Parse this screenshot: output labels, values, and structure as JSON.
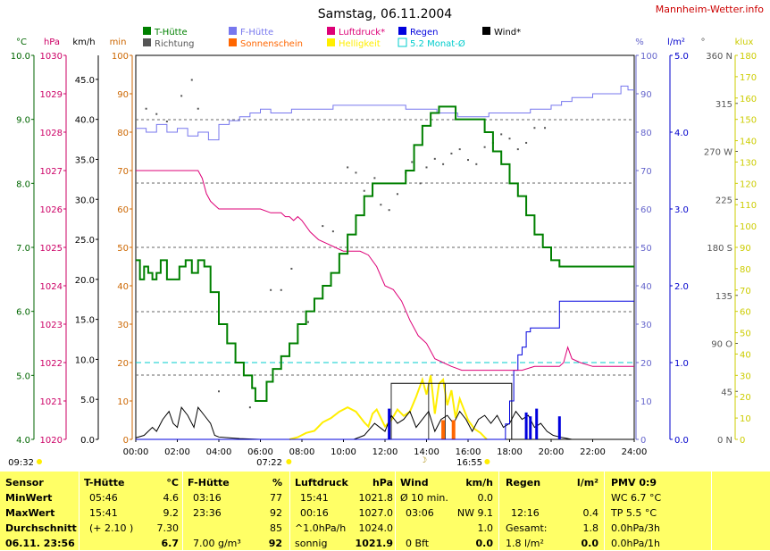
{
  "title": "Samstag, 06.11.2004",
  "site": "Mannheim-Wetter.info",
  "colors": {
    "t_huette": "#008000",
    "f_huette": "#7777ee",
    "luftdruck": "#dd0077",
    "regen": "#0000dd",
    "wind": "#000000",
    "richtung": "#555555",
    "sonnenschein": "#ff6600",
    "helligkeit": "#ffee00",
    "monat": "#00cccc",
    "axis_temp": "#006600",
    "axis_hpa": "#cc0066",
    "axis_min": "#cc6600",
    "axis_pct": "#6666cc",
    "axis_l": "#0000cc",
    "axis_lux": "#cccc00"
  },
  "legend": [
    {
      "label": "T-Hütte",
      "color": "#008000",
      "text_color": "#008000",
      "type": "box"
    },
    {
      "label": "F-Hütte",
      "color": "#7777ee",
      "text_color": "#7777ee",
      "type": "box"
    },
    {
      "label": "Luftdruck*",
      "color": "#dd0077",
      "text_color": "#dd0077",
      "type": "box"
    },
    {
      "label": "Regen",
      "color": "#0000dd",
      "text_color": "#0000dd",
      "type": "box"
    },
    {
      "label": "Wind*",
      "color": "#000000",
      "text_color": "#000000",
      "type": "box"
    },
    {
      "label": "Richtung",
      "color": "#555555",
      "text_color": "#555555",
      "type": "box"
    },
    {
      "label": "Sonnenschein",
      "color": "#ff6600",
      "text_color": "#ff6600",
      "type": "box"
    },
    {
      "label": "Helligkeit",
      "color": "#ffee00",
      "text_color": "#ffee00",
      "type": "box"
    },
    {
      "label": "5.2 Monat-Ø",
      "color": "#00cccc",
      "text_color": "#00cccc",
      "type": "outline"
    }
  ],
  "axis_units": {
    "temp": "°C",
    "hpa": "hPa",
    "kmh": "km/h",
    "min": "min",
    "pct": "%",
    "lm2": "l/m²",
    "deg": "°",
    "klux": "klux"
  },
  "axes": {
    "temp": [
      "4.0",
      "5.0",
      "6.0",
      "7.0",
      "8.0",
      "9.0",
      "10.0"
    ],
    "hpa": [
      "1020",
      "1021",
      "1022",
      "1023",
      "1024",
      "1025",
      "1026",
      "1027",
      "1028",
      "1029",
      "1030"
    ],
    "kmh": [
      "0.0",
      "5.0",
      "10.0",
      "15.0",
      "20.0",
      "25.0",
      "30.0",
      "35.0",
      "40.0",
      "45.0"
    ],
    "min": [
      "0",
      "10",
      "20",
      "30",
      "40",
      "50",
      "60",
      "70",
      "80",
      "90",
      "100"
    ],
    "pct": [
      "0",
      "10",
      "20",
      "30",
      "40",
      "50",
      "60",
      "70",
      "80",
      "90",
      "100"
    ],
    "lm2": [
      "0.0",
      "1.0",
      "2.0",
      "3.0",
      "4.0",
      "5.0"
    ],
    "deg": [
      "0 N",
      "45",
      "90 O",
      "135",
      "180 S",
      "225",
      "270 W",
      "315",
      "360 N"
    ],
    "klux": [
      "0",
      "10",
      "20",
      "30",
      "40",
      "50",
      "60",
      "70",
      "80",
      "90",
      "100",
      "110",
      "120",
      "130",
      "140",
      "150",
      "160",
      "170",
      "180"
    ],
    "hours": [
      "00:00",
      "02:00",
      "04:00",
      "06:00",
      "08:00",
      "10:00",
      "12:00",
      "14:00",
      "16:00",
      "18:00",
      "20:00",
      "22:00",
      "24:00"
    ]
  },
  "markers": {
    "sunrise": "07:22",
    "sunset": "16:55",
    "left_time": "09:32"
  },
  "chart_data": {
    "type": "line",
    "title": "Samstag, 06.11.2004",
    "x_unit": "hour of day",
    "xlim": [
      0,
      24
    ],
    "series": [
      {
        "name": "T-Hütte",
        "axis": "°C",
        "ylim": [
          4,
          10
        ],
        "x": [
          0,
          0.2,
          0.4,
          0.6,
          0.8,
          1.0,
          1.2,
          1.5,
          1.8,
          2.1,
          2.4,
          2.7,
          3.0,
          3.3,
          3.6,
          4.0,
          4.4,
          4.8,
          5.2,
          5.6,
          5.76,
          6.0,
          6.3,
          6.6,
          7.0,
          7.4,
          7.8,
          8.2,
          8.6,
          9.0,
          9.4,
          9.8,
          10.2,
          10.6,
          11.0,
          11.4,
          11.8,
          12.2,
          12.6,
          13.0,
          13.4,
          13.8,
          14.2,
          14.6,
          15.0,
          15.2,
          15.4,
          15.7,
          16.0,
          16.4,
          16.8,
          17.2,
          17.6,
          18.0,
          18.4,
          18.8,
          19.2,
          19.6,
          20.0,
          20.4,
          20.8,
          21.2,
          21.6,
          22.0,
          22.4,
          22.7,
          22.9,
          23.2,
          23.6,
          24.0
        ],
        "values": [
          6.8,
          6.5,
          6.7,
          6.6,
          6.5,
          6.6,
          6.8,
          6.5,
          6.5,
          6.7,
          6.8,
          6.6,
          6.8,
          6.7,
          6.3,
          5.8,
          5.5,
          5.2,
          5.0,
          4.8,
          4.6,
          4.6,
          4.9,
          5.1,
          5.3,
          5.5,
          5.8,
          6.0,
          6.2,
          6.4,
          6.6,
          6.9,
          7.2,
          7.5,
          7.8,
          8.0,
          8.0,
          8.0,
          8.0,
          8.2,
          8.6,
          8.9,
          9.1,
          9.2,
          9.2,
          9.2,
          9.0,
          9.0,
          9.0,
          9.0,
          8.8,
          8.5,
          8.3,
          8.0,
          7.8,
          7.5,
          7.2,
          7.0,
          6.8,
          6.7,
          6.7,
          6.7,
          6.7,
          6.7,
          6.7,
          6.7,
          6.7,
          6.7,
          6.7,
          6.7
        ]
      },
      {
        "name": "F-Hütte",
        "axis": "%",
        "ylim": [
          0,
          100
        ],
        "x": [
          0,
          0.5,
          1.0,
          1.5,
          2.0,
          2.5,
          3.0,
          3.5,
          4.0,
          4.5,
          5.0,
          5.5,
          6.0,
          6.5,
          7.0,
          7.5,
          8.0,
          8.5,
          9.0,
          9.5,
          10.0,
          10.5,
          11.0,
          11.5,
          12.0,
          12.5,
          13.0,
          13.5,
          14.0,
          14.5,
          15.0,
          15.5,
          16.0,
          16.5,
          17.0,
          17.5,
          18.0,
          18.5,
          19.0,
          19.5,
          20.0,
          20.5,
          21.0,
          21.5,
          22.0,
          22.5,
          23.0,
          23.36,
          23.7,
          24.0
        ],
        "values": [
          81,
          80,
          82,
          80,
          81,
          79,
          80,
          78,
          82,
          83,
          84,
          85,
          86,
          85,
          85,
          86,
          86,
          86,
          86,
          87,
          87,
          87,
          87,
          87,
          87,
          87,
          86,
          86,
          86,
          85,
          85,
          84,
          84,
          84,
          85,
          85,
          85,
          85,
          86,
          86,
          87,
          88,
          89,
          89,
          90,
          90,
          90,
          92,
          91,
          91
        ]
      },
      {
        "name": "Luftdruck*",
        "axis": "hPa",
        "ylim": [
          1020,
          1030
        ],
        "x": [
          0,
          1.0,
          2.0,
          3.0,
          3.2,
          3.4,
          3.6,
          3.8,
          4.0,
          4.5,
          5.0,
          5.5,
          6.0,
          6.5,
          7.0,
          7.2,
          7.4,
          7.6,
          7.8,
          8.0,
          8.4,
          8.8,
          9.2,
          9.6,
          10.0,
          10.4,
          10.8,
          11.2,
          11.6,
          12.0,
          12.4,
          12.8,
          13.2,
          13.6,
          14.0,
          14.4,
          14.8,
          15.2,
          15.7,
          16.2,
          16.8,
          17.4,
          18.0,
          18.6,
          19.2,
          19.6,
          20.0,
          20.4,
          20.6,
          20.8,
          21.0,
          21.4,
          22.0,
          22.6,
          23.2,
          24.0
        ],
        "values": [
          1027.0,
          1027.0,
          1027.0,
          1027.0,
          1026.8,
          1026.4,
          1026.2,
          1026.1,
          1026.0,
          1026.0,
          1026.0,
          1026.0,
          1026.0,
          1025.9,
          1025.9,
          1025.8,
          1025.8,
          1025.7,
          1025.8,
          1025.7,
          1025.4,
          1025.2,
          1025.1,
          1025.0,
          1024.9,
          1024.9,
          1024.9,
          1024.8,
          1024.5,
          1024.0,
          1023.9,
          1023.6,
          1023.1,
          1022.7,
          1022.5,
          1022.1,
          1022.0,
          1021.9,
          1021.8,
          1021.8,
          1021.8,
          1021.8,
          1021.8,
          1021.8,
          1021.9,
          1021.9,
          1021.9,
          1021.9,
          1022.0,
          1022.4,
          1022.1,
          1022.0,
          1021.9,
          1021.9,
          1021.9,
          1021.9
        ]
      },
      {
        "name": "Regen",
        "axis": "l/m²",
        "ylim": [
          0,
          5
        ],
        "x": [
          0,
          17.6,
          17.8,
          18.0,
          18.2,
          18.4,
          18.6,
          18.8,
          19.0,
          19.5,
          20.0,
          20.3,
          20.4,
          20.5,
          21.0,
          22.0,
          23.0,
          24.0
        ],
        "values": [
          0,
          0,
          0.2,
          0.5,
          0.9,
          1.1,
          1.2,
          1.4,
          1.45,
          1.45,
          1.45,
          1.45,
          1.8,
          1.8,
          1.8,
          1.8,
          1.8,
          1.8
        ]
      },
      {
        "name": "Wind*",
        "axis": "km/h",
        "ylim": [
          0,
          48
        ],
        "x": [
          0,
          0.4,
          0.8,
          1.0,
          1.3,
          1.6,
          1.8,
          2.0,
          2.2,
          2.5,
          2.8,
          3.0,
          3.3,
          3.6,
          3.8,
          4.0,
          4.5,
          5.0,
          6.0,
          7.0,
          8.0,
          8.5,
          9.0,
          9.5,
          10.0,
          10.5,
          11.0,
          11.5,
          12.0,
          12.3,
          12.6,
          12.9,
          13.2,
          13.5,
          13.8,
          14.1,
          14.4,
          14.7,
          15.0,
          15.3,
          15.6,
          15.9,
          16.2,
          16.5,
          16.8,
          17.1,
          17.4,
          17.7,
          18.0,
          18.3,
          18.6,
          18.9,
          19.2,
          19.5,
          19.8,
          20.1,
          20.4,
          21.0,
          24.0
        ],
        "values": [
          0.2,
          0.5,
          1.5,
          1.0,
          2.5,
          3.5,
          2.0,
          1.5,
          4.0,
          3.0,
          1.5,
          4.0,
          3.0,
          2.0,
          0.5,
          0.3,
          0.2,
          0.1,
          0.0,
          0.0,
          0.0,
          0.0,
          0.0,
          0.0,
          0.0,
          0.0,
          0.5,
          2.0,
          1.0,
          3.0,
          2.0,
          2.5,
          3.5,
          1.5,
          2.5,
          3.5,
          1.0,
          2.5,
          3.0,
          2.0,
          3.5,
          2.5,
          1.0,
          2.5,
          3.0,
          2.0,
          3.0,
          1.5,
          2.0,
          3.5,
          2.5,
          3.0,
          1.5,
          2.0,
          1.0,
          0.5,
          0.3,
          0.0,
          0.0
        ]
      },
      {
        "name": "Helligkeit",
        "axis": "klux",
        "ylim": [
          0,
          180
        ],
        "x": [
          7.4,
          7.8,
          8.2,
          8.6,
          9.0,
          9.4,
          9.8,
          10.2,
          10.6,
          11.0,
          11.2,
          11.4,
          11.6,
          11.8,
          12.0,
          12.3,
          12.6,
          12.9,
          13.2,
          13.5,
          13.8,
          14.0,
          14.2,
          14.4,
          14.6,
          14.8,
          15.0,
          15.2,
          15.4,
          15.6,
          15.8,
          16.0,
          16.3,
          16.6,
          16.9
        ],
        "values": [
          0,
          1,
          3,
          4,
          8,
          10,
          13,
          15,
          13,
          8,
          6,
          12,
          14,
          10,
          6,
          9,
          14,
          11,
          13,
          20,
          28,
          21,
          30,
          12,
          26,
          28,
          16,
          23,
          10,
          19,
          14,
          9,
          5,
          3,
          0
        ]
      },
      {
        "name": "Richtung",
        "axis": "°",
        "ylim": [
          0,
          360
        ],
        "type": "scatter",
        "x": [
          0.5,
          1.0,
          1.5,
          2.2,
          2.7,
          3.0,
          4.0,
          5.5,
          6.5,
          7.0,
          7.5,
          8.3,
          9.0,
          9.5,
          10.2,
          10.6,
          11.0,
          11.5,
          11.8,
          12.2,
          12.6,
          13.0,
          13.3,
          13.7,
          14.0,
          14.4,
          14.8,
          15.2,
          15.6,
          16.0,
          16.4,
          16.8,
          17.2,
          17.6,
          18.0,
          18.4,
          18.8,
          19.2,
          19.7
        ],
        "values": [
          310,
          305,
          298,
          322,
          337,
          310,
          45,
          30,
          140,
          140,
          160,
          110,
          200,
          195,
          255,
          250,
          233,
          245,
          220,
          215,
          230,
          250,
          260,
          240,
          255,
          263,
          258,
          268,
          272,
          262,
          258,
          274,
          278,
          286,
          282,
          272,
          278,
          292,
          292
        ]
      }
    ],
    "reference_lines": [
      {
        "name": "5.2 Monat-Ø",
        "axis": "°C",
        "value": 5.2
      }
    ],
    "rain_bars": {
      "name": "Regen",
      "axis": "l/m²",
      "x": [
        12.2,
        18.8,
        19.0,
        19.3,
        20.4
      ],
      "values": [
        0.4,
        0.35,
        0.3,
        0.4,
        0.3
      ]
    },
    "sunshine_bars": {
      "name": "Sonnenschein",
      "axis": "min",
      "x": [
        14.8,
        15.3
      ],
      "values": [
        5,
        5
      ]
    },
    "gray_bars": {
      "x": [
        12.3,
        14.1,
        14.9
      ],
      "values": [
        7,
        7,
        7
      ]
    }
  },
  "table": {
    "headers": {
      "sensor": "Sensor",
      "t_huette": "T-Hütte",
      "t_unit": "°C",
      "f_huette": "F-Hütte",
      "f_unit": "%",
      "luftdruck": "Luftdruck",
      "l_unit": "hPa",
      "wind": "Wind",
      "w_unit": "km/h",
      "regen": "Regen",
      "r_unit": "l/m²",
      "pmv": "PMV 0:9"
    },
    "min": {
      "label": "MinWert",
      "t_time": "05:46",
      "t_val": "4.6",
      "f_time": "03:16",
      "f_val": "77",
      "l_time": "15:41",
      "l_val": "1021.8",
      "w_label": "Ø 10 min.",
      "w_val": "0.0",
      "pmv": "WC 6.7 °C"
    },
    "max": {
      "label": "MaxWert",
      "t_time": "15:41",
      "t_val": "9.2",
      "f_time": "23:36",
      "f_val": "92",
      "l_time": "00:16",
      "l_val": "1027.0",
      "w_time": "03:06",
      "w_val": "NW 9.1",
      "r_time": "12:16",
      "r_val": "0.4",
      "pmv": "TP 5.5 °C"
    },
    "avg": {
      "label": "Durchschnitt",
      "t_extra": "(+ 2.10 )",
      "t_val": "7.30",
      "f_val": "85",
      "l_label": "^1.0hPa/h",
      "l_val": "1024.0",
      "w_val": "1.0",
      "r_label": "Gesamt:",
      "r_val": "1.8",
      "pmv": "0.0hPa/3h"
    },
    "cur": {
      "label": "06.11. 23:56",
      "t_val": "6.7",
      "f_extra": "7.00 g/m³",
      "f_val": "92",
      "l_label": "sonnig",
      "l_val": "1021.9",
      "w_label": "0 Bft",
      "w_val": "0.0",
      "r_label": "1.8 l/m²",
      "r_val": "0.0",
      "pmv": "0.0hPa/1h"
    }
  }
}
